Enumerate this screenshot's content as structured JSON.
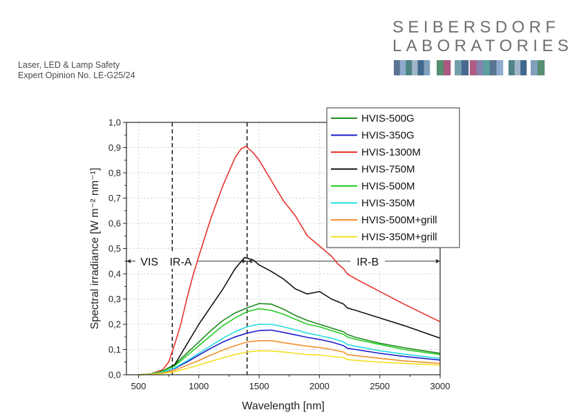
{
  "header": {
    "line1": "Laser, LED & Lamp Safety",
    "line2": "Expert Opinion No. LE-G25/24"
  },
  "logo": {
    "line1": "SEIBERSDORF",
    "line2": "LABORATORIES",
    "colors": [
      "#3d5a80",
      "#7a9cc6",
      "#2f6f6f",
      "#8fa7c0",
      "#1f4e79",
      "#6a8fb0",
      "#3b7a57",
      "#9b3c6b",
      "#5a8fa0",
      "#2c4f7c",
      "#a04070",
      "#6f6fa0",
      "#3f8f8f"
    ]
  },
  "chart_data": {
    "type": "line",
    "xlabel": "Wavelength [nm]",
    "ylabel": "Spectral irradiance [W m⁻² nm⁻¹]",
    "xlim": [
      400,
      3000
    ],
    "ylim": [
      0,
      1.0
    ],
    "xticks": [
      500,
      1000,
      1500,
      2000,
      2500,
      3000
    ],
    "yticks": [
      "0,0",
      "0,1",
      "0,2",
      "0,3",
      "0,4",
      "0,5",
      "0,6",
      "0,7",
      "0,8",
      "0,9",
      "1,0"
    ],
    "grid": true,
    "legend": "top-right",
    "vlines": [
      780,
      1400
    ],
    "regions": [
      {
        "label": "VIS",
        "from": 400,
        "to": 780
      },
      {
        "label": "IR-A",
        "from": 780,
        "to": 1400
      },
      {
        "label": "IR-B",
        "from": 1400,
        "to": 3000
      }
    ],
    "region_arrow_y": 0.45,
    "series": [
      {
        "name": "HVIS-500G",
        "color": "#1a8a1a",
        "points": [
          [
            500,
            0
          ],
          [
            600,
            0.003
          ],
          [
            700,
            0.015
          ],
          [
            800,
            0.04
          ],
          [
            900,
            0.085
          ],
          [
            1000,
            0.13
          ],
          [
            1100,
            0.175
          ],
          [
            1200,
            0.215
          ],
          [
            1300,
            0.245
          ],
          [
            1400,
            0.265
          ],
          [
            1500,
            0.282
          ],
          [
            1600,
            0.28
          ],
          [
            1700,
            0.26
          ],
          [
            1800,
            0.235
          ],
          [
            1900,
            0.215
          ],
          [
            2000,
            0.2
          ],
          [
            2100,
            0.185
          ],
          [
            2200,
            0.17
          ],
          [
            2230,
            0.16
          ],
          [
            2300,
            0.148
          ],
          [
            2500,
            0.125
          ],
          [
            2700,
            0.107
          ],
          [
            3000,
            0.085
          ]
        ]
      },
      {
        "name": "HVIS-350G",
        "color": "#1a1acc",
        "points": [
          [
            500,
            0
          ],
          [
            600,
            0.002
          ],
          [
            700,
            0.01
          ],
          [
            800,
            0.025
          ],
          [
            900,
            0.05
          ],
          [
            1000,
            0.078
          ],
          [
            1100,
            0.105
          ],
          [
            1200,
            0.13
          ],
          [
            1300,
            0.15
          ],
          [
            1400,
            0.165
          ],
          [
            1500,
            0.175
          ],
          [
            1600,
            0.177
          ],
          [
            1700,
            0.168
          ],
          [
            1800,
            0.158
          ],
          [
            1900,
            0.148
          ],
          [
            2000,
            0.14
          ],
          [
            2100,
            0.13
          ],
          [
            2200,
            0.115
          ],
          [
            2230,
            0.105
          ],
          [
            2300,
            0.1
          ],
          [
            2500,
            0.085
          ],
          [
            2700,
            0.073
          ],
          [
            3000,
            0.058
          ]
        ]
      },
      {
        "name": "HVIS-1300M",
        "color": "#e8302a",
        "points": [
          [
            500,
            0
          ],
          [
            600,
            0.003
          ],
          [
            700,
            0.02
          ],
          [
            750,
            0.05
          ],
          [
            800,
            0.12
          ],
          [
            850,
            0.2
          ],
          [
            900,
            0.3
          ],
          [
            950,
            0.39
          ],
          [
            1000,
            0.47
          ],
          [
            1100,
            0.62
          ],
          [
            1200,
            0.75
          ],
          [
            1300,
            0.86
          ],
          [
            1350,
            0.895
          ],
          [
            1390,
            0.905
          ],
          [
            1450,
            0.88
          ],
          [
            1500,
            0.85
          ],
          [
            1600,
            0.77
          ],
          [
            1700,
            0.69
          ],
          [
            1800,
            0.63
          ],
          [
            1900,
            0.55
          ],
          [
            2000,
            0.51
          ],
          [
            2100,
            0.47
          ],
          [
            2150,
            0.44
          ],
          [
            2200,
            0.42
          ],
          [
            2230,
            0.4
          ],
          [
            2300,
            0.38
          ],
          [
            2500,
            0.33
          ],
          [
            2700,
            0.28
          ],
          [
            3000,
            0.21
          ]
        ]
      },
      {
        "name": "HVIS-750M",
        "color": "#111111",
        "points": [
          [
            500,
            0
          ],
          [
            600,
            0.002
          ],
          [
            700,
            0.012
          ],
          [
            800,
            0.04
          ],
          [
            900,
            0.12
          ],
          [
            1000,
            0.2
          ],
          [
            1100,
            0.27
          ],
          [
            1200,
            0.34
          ],
          [
            1300,
            0.42
          ],
          [
            1380,
            0.465
          ],
          [
            1450,
            0.455
          ],
          [
            1500,
            0.435
          ],
          [
            1600,
            0.41
          ],
          [
            1700,
            0.38
          ],
          [
            1800,
            0.34
          ],
          [
            1900,
            0.32
          ],
          [
            2000,
            0.33
          ],
          [
            2100,
            0.3
          ],
          [
            2200,
            0.28
          ],
          [
            2230,
            0.265
          ],
          [
            2300,
            0.255
          ],
          [
            2500,
            0.225
          ],
          [
            2700,
            0.195
          ],
          [
            3000,
            0.145
          ]
        ]
      },
      {
        "name": "HVIS-500M",
        "color": "#22cc22",
        "points": [
          [
            500,
            0
          ],
          [
            600,
            0.003
          ],
          [
            700,
            0.014
          ],
          [
            800,
            0.035
          ],
          [
            900,
            0.075
          ],
          [
            1000,
            0.115
          ],
          [
            1100,
            0.155
          ],
          [
            1200,
            0.195
          ],
          [
            1300,
            0.225
          ],
          [
            1400,
            0.25
          ],
          [
            1500,
            0.262
          ],
          [
            1600,
            0.255
          ],
          [
            1700,
            0.24
          ],
          [
            1800,
            0.22
          ],
          [
            1900,
            0.2
          ],
          [
            2000,
            0.19
          ],
          [
            2100,
            0.175
          ],
          [
            2200,
            0.16
          ],
          [
            2230,
            0.15
          ],
          [
            2300,
            0.14
          ],
          [
            2500,
            0.12
          ],
          [
            2700,
            0.1
          ],
          [
            3000,
            0.08
          ]
        ]
      },
      {
        "name": "HVIS-350M",
        "color": "#22dddd",
        "points": [
          [
            500,
            0
          ],
          [
            600,
            0.002
          ],
          [
            700,
            0.01
          ],
          [
            800,
            0.027
          ],
          [
            900,
            0.055
          ],
          [
            1000,
            0.085
          ],
          [
            1100,
            0.115
          ],
          [
            1200,
            0.145
          ],
          [
            1300,
            0.17
          ],
          [
            1400,
            0.19
          ],
          [
            1500,
            0.2
          ],
          [
            1600,
            0.2
          ],
          [
            1700,
            0.19
          ],
          [
            1800,
            0.178
          ],
          [
            1900,
            0.165
          ],
          [
            2000,
            0.155
          ],
          [
            2100,
            0.145
          ],
          [
            2200,
            0.13
          ],
          [
            2230,
            0.12
          ],
          [
            2300,
            0.113
          ],
          [
            2500,
            0.095
          ],
          [
            2700,
            0.082
          ],
          [
            3000,
            0.065
          ]
        ]
      },
      {
        "name": "HVIS-500M+grill",
        "color": "#f0902a",
        "points": [
          [
            500,
            0
          ],
          [
            600,
            0.002
          ],
          [
            700,
            0.007
          ],
          [
            800,
            0.018
          ],
          [
            900,
            0.037
          ],
          [
            1000,
            0.057
          ],
          [
            1100,
            0.078
          ],
          [
            1200,
            0.098
          ],
          [
            1300,
            0.115
          ],
          [
            1400,
            0.13
          ],
          [
            1500,
            0.135
          ],
          [
            1600,
            0.135
          ],
          [
            1700,
            0.127
          ],
          [
            1800,
            0.12
          ],
          [
            1900,
            0.113
          ],
          [
            2000,
            0.108
          ],
          [
            2100,
            0.1
          ],
          [
            2200,
            0.09
          ],
          [
            2230,
            0.08
          ],
          [
            2300,
            0.076
          ],
          [
            2500,
            0.065
          ],
          [
            2700,
            0.055
          ],
          [
            3000,
            0.045
          ]
        ]
      },
      {
        "name": "HVIS-350M+grill",
        "color": "#f2e020",
        "points": [
          [
            500,
            0
          ],
          [
            600,
            0.001
          ],
          [
            700,
            0.005
          ],
          [
            800,
            0.012
          ],
          [
            900,
            0.025
          ],
          [
            1000,
            0.038
          ],
          [
            1100,
            0.053
          ],
          [
            1200,
            0.067
          ],
          [
            1300,
            0.08
          ],
          [
            1400,
            0.09
          ],
          [
            1500,
            0.095
          ],
          [
            1600,
            0.094
          ],
          [
            1700,
            0.09
          ],
          [
            1800,
            0.085
          ],
          [
            1900,
            0.08
          ],
          [
            2000,
            0.078
          ],
          [
            2100,
            0.073
          ],
          [
            2200,
            0.068
          ],
          [
            2230,
            0.06
          ],
          [
            2300,
            0.057
          ],
          [
            2500,
            0.05
          ],
          [
            2700,
            0.045
          ],
          [
            3000,
            0.038
          ]
        ]
      }
    ]
  }
}
